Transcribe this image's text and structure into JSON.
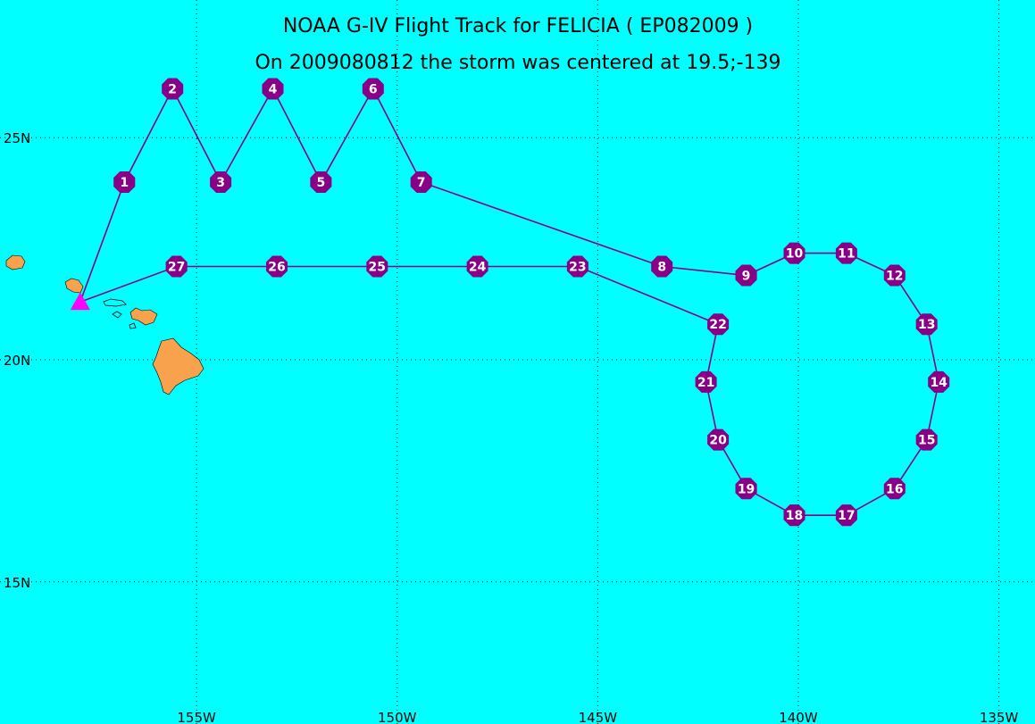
{
  "title_line1": "NOAA G-IV Flight Track for FELICIA ( EP082009 )",
  "title_line2": "On 2009080812 the storm was centered at 19.5;-139",
  "colors": {
    "background": "#00ffff",
    "track": "#880088",
    "waypoint": "#880088",
    "waypoint_label": "#ffffff",
    "land": "#f9a24d",
    "airport_marker": "#ff00ff",
    "grid": "#000000"
  },
  "axes": {
    "lon_ticks": [
      "155W",
      "150W",
      "145W",
      "140W",
      "135W"
    ],
    "lat_ticks": [
      "25N",
      "20N",
      "15N"
    ],
    "lon_range": [
      -159.9,
      -134.1
    ],
    "lat_range": [
      11.8,
      28.1
    ]
  },
  "chart_data": {
    "type": "map",
    "x": [
      -157.9,
      -156.8,
      -155.6,
      -154.4,
      -153.1,
      -151.9,
      -150.6,
      -149.4,
      -143.4,
      -141.3,
      -140.1,
      -138.8,
      -137.6,
      -136.8,
      -136.5,
      -136.8,
      -137.6,
      -138.8,
      -140.1,
      -141.3,
      -142.0,
      -142.3,
      -142.0,
      -145.5,
      -148.0,
      -150.5,
      -153.0,
      -155.5,
      -157.9
    ],
    "y": [
      21.3,
      24.0,
      26.1,
      24.0,
      26.1,
      24.0,
      26.1,
      24.0,
      22.1,
      21.9,
      22.4,
      22.4,
      21.9,
      20.8,
      19.5,
      18.2,
      17.1,
      16.5,
      16.5,
      17.1,
      18.2,
      19.5,
      20.8,
      22.1,
      22.1,
      22.1,
      22.1,
      22.1,
      21.3
    ],
    "waypoints": [
      "",
      "1",
      "2",
      "3",
      "4",
      "5",
      "6",
      "7",
      "8",
      "9",
      "10",
      "11",
      "12",
      "13",
      "14",
      "15",
      "16",
      "17",
      "18",
      "19",
      "20",
      "21",
      "22",
      "23",
      "24",
      "25",
      "26",
      "27",
      ""
    ],
    "airport": {
      "x": -157.9,
      "y": 21.3
    },
    "grid": true
  }
}
